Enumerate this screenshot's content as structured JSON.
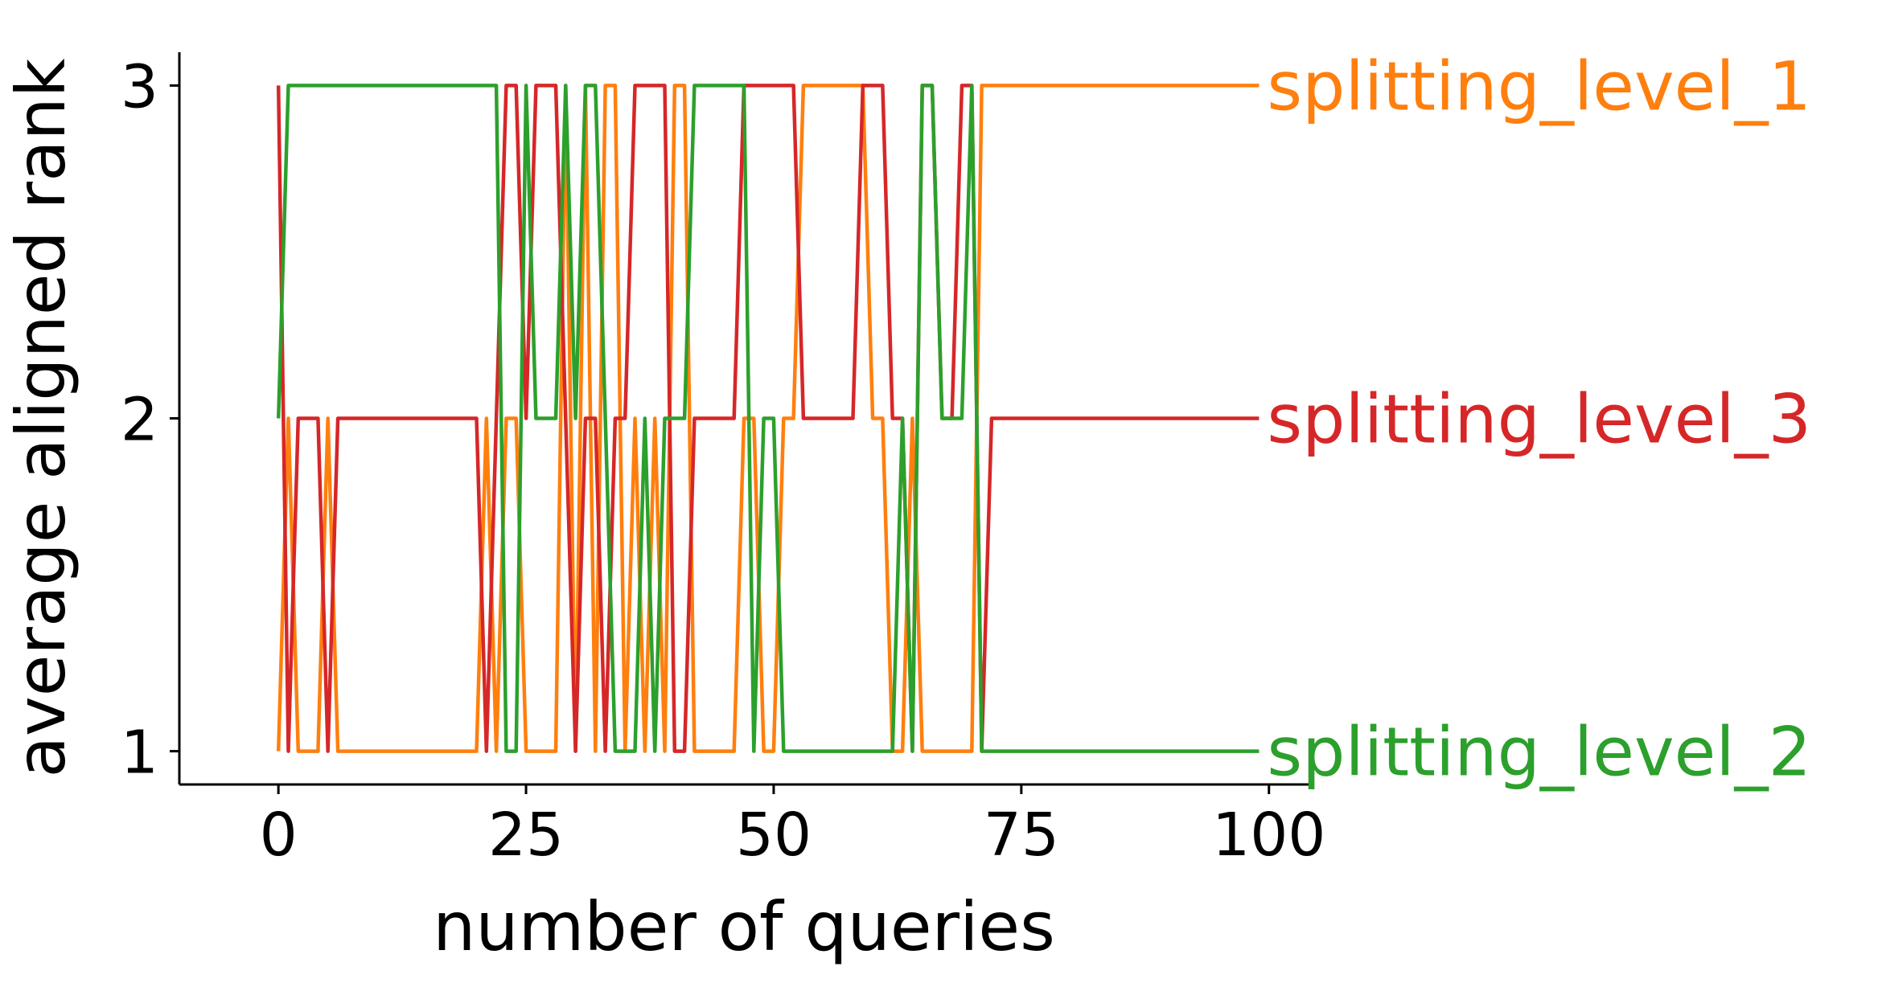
{
  "chart_data": {
    "type": "line",
    "xlabel": "number of queries",
    "ylabel": "average aligned rank",
    "xlim": [
      -10,
      104
    ],
    "ylim": [
      0.9,
      3.1
    ],
    "xticks": [
      0,
      25,
      50,
      75,
      100
    ],
    "yticks": [
      1,
      2,
      3
    ],
    "xtick_labels": [
      "0",
      "25",
      "50",
      "75",
      "100"
    ],
    "ytick_labels": [
      "1",
      "2",
      "3"
    ],
    "grid": false,
    "legend": "direct labels at right end of each line",
    "series": [
      {
        "name": "splitting_level_1",
        "color": "#ff7f0e",
        "x": [
          0,
          1,
          2,
          3,
          4,
          5,
          6,
          7,
          8,
          9,
          10,
          11,
          12,
          13,
          14,
          15,
          16,
          17,
          18,
          19,
          20,
          21,
          22,
          23,
          24,
          25,
          26,
          27,
          28,
          29,
          30,
          31,
          32,
          33,
          34,
          35,
          36,
          37,
          38,
          39,
          40,
          41,
          42,
          43,
          44,
          45,
          46,
          47,
          48,
          49,
          50,
          51,
          52,
          53,
          54,
          55,
          56,
          57,
          58,
          59,
          60,
          61,
          62,
          63,
          64,
          65,
          66,
          67,
          68,
          69,
          70,
          71,
          72,
          73,
          74,
          75,
          76,
          77,
          78,
          79,
          80,
          81,
          82,
          83,
          84,
          85,
          86,
          87,
          88,
          89,
          90,
          91,
          92,
          93,
          94,
          95,
          96,
          97,
          98,
          99
        ],
        "y": [
          1,
          2,
          1,
          1,
          1,
          2,
          1,
          1,
          1,
          1,
          1,
          1,
          1,
          1,
          1,
          1,
          1,
          1,
          1,
          1,
          1,
          2,
          1,
          2,
          2,
          1,
          1,
          1,
          1,
          3,
          1,
          3,
          1,
          3,
          3,
          1,
          2,
          1,
          2,
          1,
          3,
          3,
          1,
          1,
          1,
          1,
          1,
          2,
          2,
          1,
          1,
          2,
          2,
          3,
          3,
          3,
          3,
          3,
          3,
          3,
          2,
          2,
          1,
          1,
          2,
          1,
          1,
          1,
          1,
          1,
          1,
          3,
          3,
          3,
          3,
          3,
          3,
          3,
          3,
          3,
          3,
          3,
          3,
          3,
          3,
          3,
          3,
          3,
          3,
          3,
          3,
          3,
          3,
          3,
          3,
          3,
          3,
          3,
          3,
          3
        ]
      },
      {
        "name": "splitting_level_3",
        "color": "#d62728",
        "x": [
          0,
          1,
          2,
          3,
          4,
          5,
          6,
          7,
          8,
          9,
          10,
          11,
          12,
          13,
          14,
          15,
          16,
          17,
          18,
          19,
          20,
          21,
          22,
          23,
          24,
          25,
          26,
          27,
          28,
          29,
          30,
          31,
          32,
          33,
          34,
          35,
          36,
          37,
          38,
          39,
          40,
          41,
          42,
          43,
          44,
          45,
          46,
          47,
          48,
          49,
          50,
          51,
          52,
          53,
          54,
          55,
          56,
          57,
          58,
          59,
          60,
          61,
          62,
          63,
          64,
          65,
          66,
          67,
          68,
          69,
          70,
          71,
          72,
          73,
          74,
          75,
          76,
          77,
          78,
          79,
          80,
          81,
          82,
          83,
          84,
          85,
          86,
          87,
          88,
          89,
          90,
          91,
          92,
          93,
          94,
          95,
          96,
          97,
          98,
          99
        ],
        "y": [
          3,
          1,
          2,
          2,
          2,
          1,
          2,
          2,
          2,
          2,
          2,
          2,
          2,
          2,
          2,
          2,
          2,
          2,
          2,
          2,
          2,
          1,
          2,
          3,
          3,
          2,
          3,
          3,
          3,
          2,
          1,
          2,
          2,
          1,
          2,
          2,
          3,
          3,
          3,
          3,
          1,
          1,
          2,
          2,
          2,
          2,
          2,
          3,
          3,
          3,
          3,
          3,
          3,
          2,
          2,
          2,
          2,
          2,
          2,
          3,
          3,
          3,
          2,
          2,
          1,
          3,
          3,
          2,
          2,
          3,
          3,
          1,
          2,
          2,
          2,
          2,
          2,
          2,
          2,
          2,
          2,
          2,
          2,
          2,
          2,
          2,
          2,
          2,
          2,
          2,
          2,
          2,
          2,
          2,
          2,
          2,
          2,
          2,
          2,
          2
        ]
      },
      {
        "name": "splitting_level_2",
        "color": "#2ca02c",
        "x": [
          0,
          1,
          2,
          3,
          4,
          5,
          6,
          7,
          8,
          9,
          10,
          11,
          12,
          13,
          14,
          15,
          16,
          17,
          18,
          19,
          20,
          21,
          22,
          23,
          24,
          25,
          26,
          27,
          28,
          29,
          30,
          31,
          32,
          33,
          34,
          35,
          36,
          37,
          38,
          39,
          40,
          41,
          42,
          43,
          44,
          45,
          46,
          47,
          48,
          49,
          50,
          51,
          52,
          53,
          54,
          55,
          56,
          57,
          58,
          59,
          60,
          61,
          62,
          63,
          64,
          65,
          66,
          67,
          68,
          69,
          70,
          71,
          72,
          73,
          74,
          75,
          76,
          77,
          78,
          79,
          80,
          81,
          82,
          83,
          84,
          85,
          86,
          87,
          88,
          89,
          90,
          91,
          92,
          93,
          94,
          95,
          96,
          97,
          98,
          99
        ],
        "y": [
          2,
          3,
          3,
          3,
          3,
          3,
          3,
          3,
          3,
          3,
          3,
          3,
          3,
          3,
          3,
          3,
          3,
          3,
          3,
          3,
          3,
          3,
          3,
          1,
          1,
          3,
          2,
          2,
          2,
          3,
          2,
          3,
          3,
          2,
          1,
          1,
          1,
          2,
          1,
          2,
          2,
          2,
          3,
          3,
          3,
          3,
          3,
          3,
          1,
          2,
          2,
          1,
          1,
          1,
          1,
          1,
          1,
          1,
          1,
          1,
          1,
          1,
          1,
          2,
          1,
          3,
          3,
          2,
          2,
          2,
          3,
          1,
          1,
          1,
          1,
          1,
          1,
          1,
          1,
          1,
          1,
          1,
          1,
          1,
          1,
          1,
          1,
          1,
          1,
          1,
          1,
          1,
          1,
          1,
          1,
          1,
          1,
          1,
          1,
          1
        ]
      }
    ]
  }
}
